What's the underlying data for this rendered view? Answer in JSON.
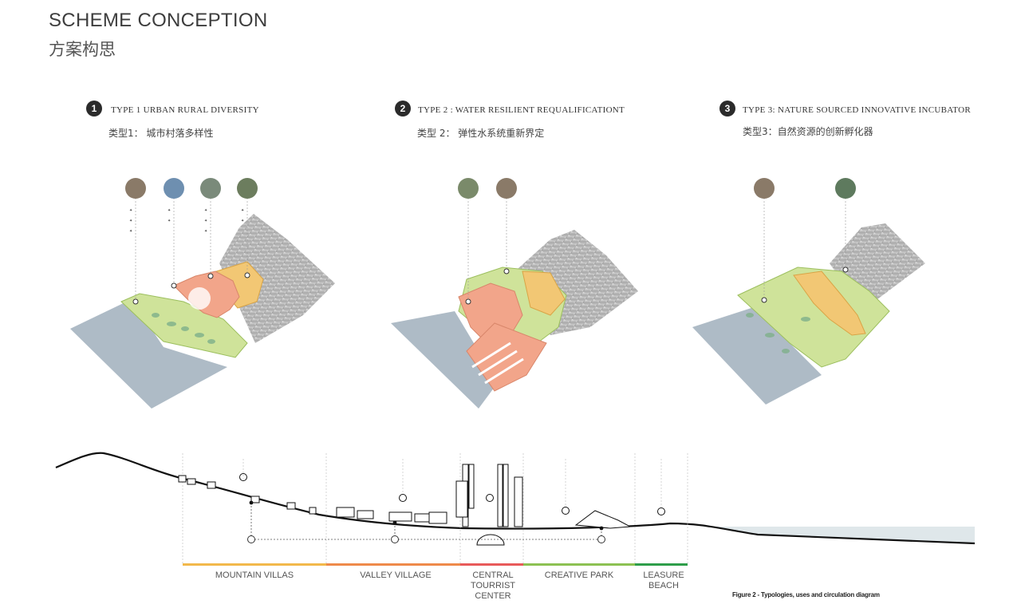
{
  "header": {
    "title": "SCHEME CONCEPTION",
    "subtitle": "方案构思"
  },
  "types": [
    {
      "number": "1",
      "title_en": "TYPE 1 URBAN RURAL DIVERSITY",
      "title_cn": "类型1： 城市村落多样性"
    },
    {
      "number": "2",
      "title_en": "TYPE 2 : WATER RESILIENT REQUALIFICATIONT",
      "title_cn": "类型 2： 弹性水系统重新界定"
    },
    {
      "number": "3",
      "title_en": "TYPE 3: NATURE SOURCED INNOVATIVE INCUBATOR",
      "title_cn": "类型3：自然资源的创新孵化器"
    }
  ],
  "zones": [
    {
      "label": "MOUNTAIN VILLAS",
      "color": "#f2b84b"
    },
    {
      "label": "VALLEY VILLAGE",
      "color": "#ee8a4a"
    },
    {
      "label": "CENTRAL TOURRIST CENTER",
      "color": "#e85a5a"
    },
    {
      "label": "CREATIVE PARK",
      "color": "#8cc152"
    },
    {
      "label": "LEASURE BEACH",
      "color": "#2e9e4a"
    }
  ],
  "colors": {
    "water": "#aebbc6",
    "green": "#cfe39a",
    "orange": "#f2c774",
    "salmon": "#f2a58a",
    "mountain": "#9a9a9a"
  },
  "caption": "Figure 2 - Typologies, uses and circulation diagram"
}
